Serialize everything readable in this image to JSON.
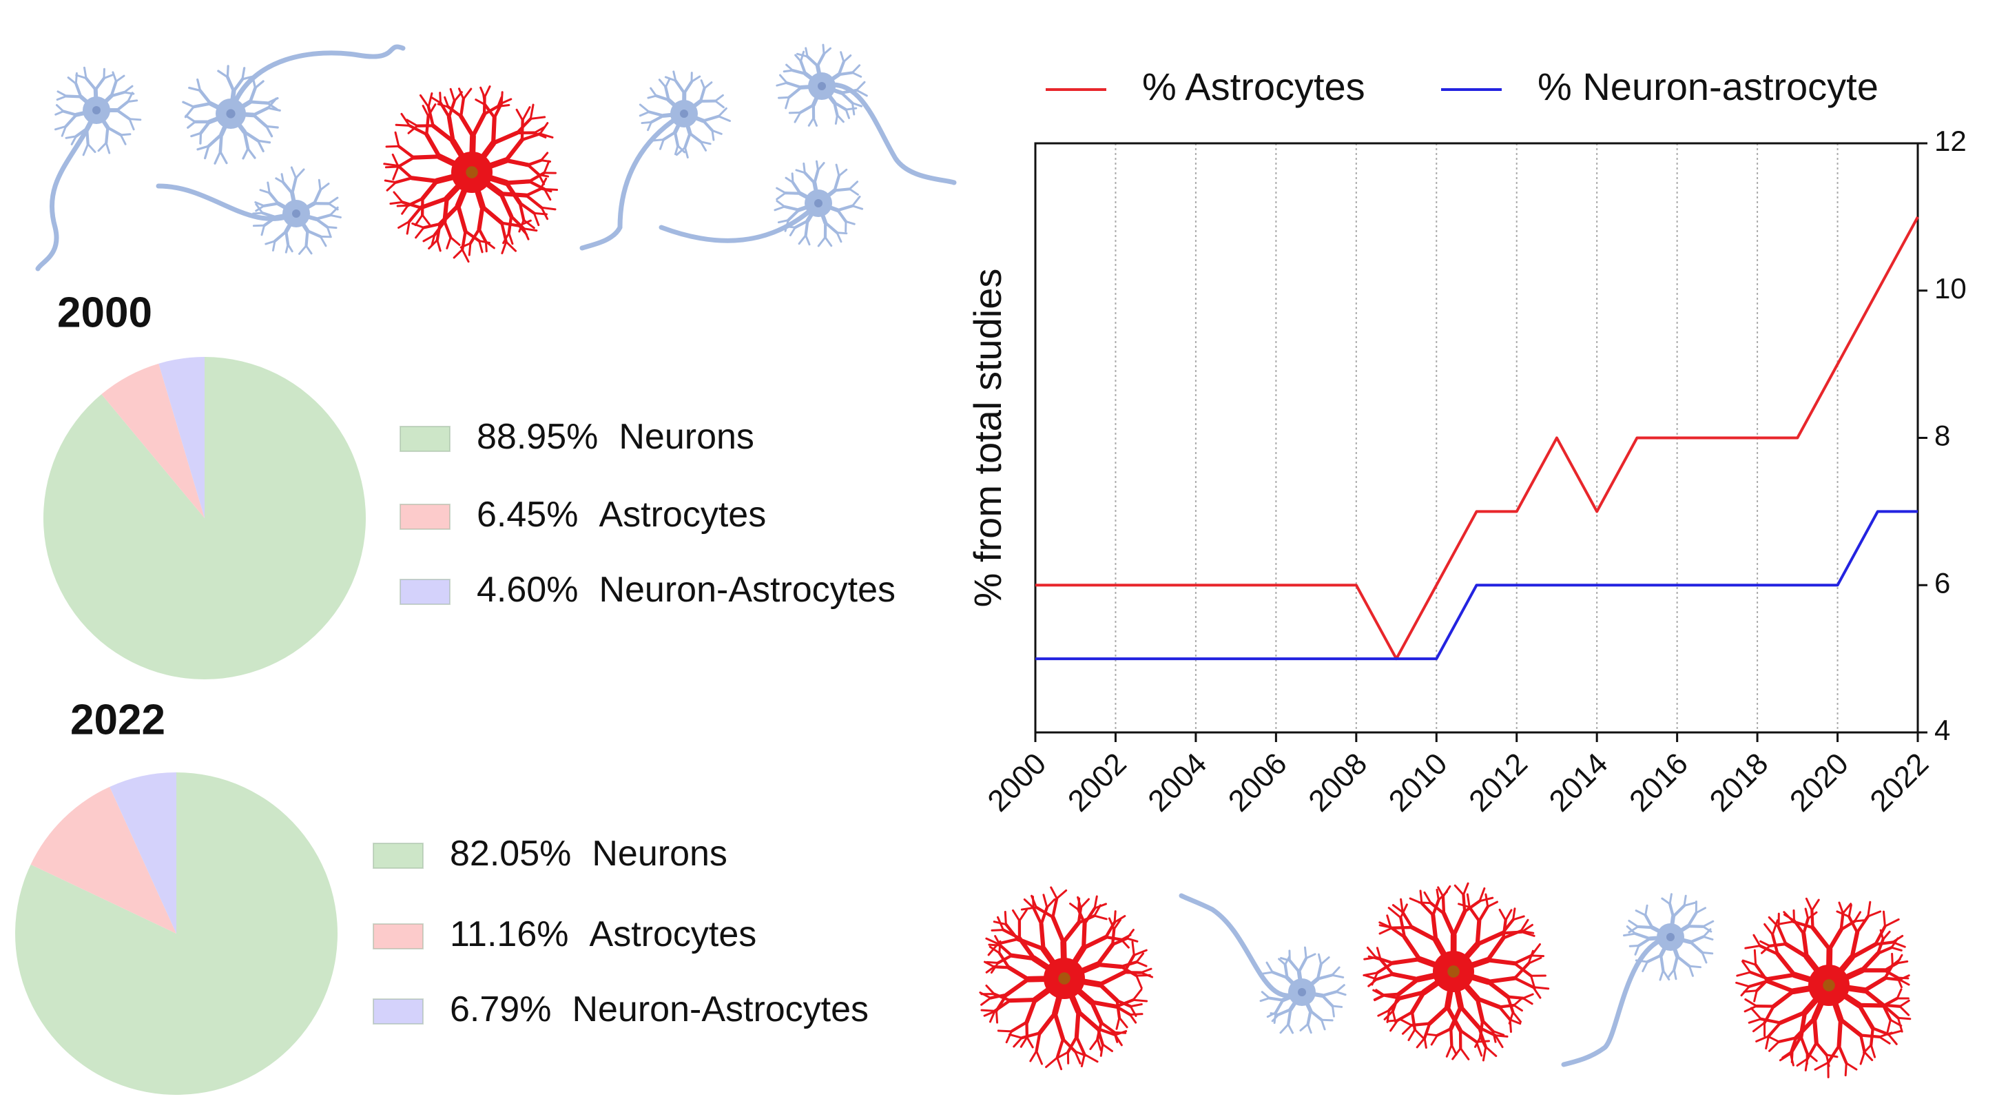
{
  "chart_data": [
    {
      "type": "pie",
      "title": "2000",
      "categories": [
        "Neurons",
        "Astrocytes",
        "Neuron-Astrocytes"
      ],
      "values": [
        88.95,
        6.45,
        4.6
      ],
      "value_labels": [
        "88.95%",
        "6.45%",
        "4.60%"
      ],
      "colors": [
        "#cde6c8",
        "#fccbcb",
        "#d4d2fb"
      ]
    },
    {
      "type": "pie",
      "title": "2022",
      "categories": [
        "Neurons",
        "Astrocytes",
        "Neuron-Astrocytes"
      ],
      "values": [
        82.05,
        11.16,
        6.79
      ],
      "value_labels": [
        "82.05%",
        "11.16%",
        "6.79%"
      ],
      "colors": [
        "#cde6c8",
        "#fccbcb",
        "#d4d2fb"
      ]
    },
    {
      "type": "line",
      "y_label": "% from total studies",
      "x": [
        2000,
        2001,
        2002,
        2003,
        2004,
        2005,
        2006,
        2007,
        2008,
        2009,
        2010,
        2011,
        2012,
        2013,
        2014,
        2015,
        2016,
        2017,
        2018,
        2019,
        2020,
        2021,
        2022
      ],
      "series": [
        {
          "name": "% Astrocytes",
          "color": "#e8262b",
          "values": [
            6,
            6,
            6,
            6,
            6,
            6,
            6,
            6,
            6,
            5,
            6,
            7,
            7,
            8,
            7,
            8,
            8,
            8,
            8,
            8,
            9,
            10,
            11
          ]
        },
        {
          "name": "% Neuron-astrocyte",
          "color": "#2323e0",
          "values": [
            5,
            5,
            5,
            5,
            5,
            5,
            5,
            5,
            5,
            5,
            5,
            6,
            6,
            6,
            6,
            6,
            6,
            6,
            6,
            6,
            6,
            7,
            7
          ]
        }
      ],
      "xlim": [
        2000,
        2022
      ],
      "xticks": [
        2000,
        2002,
        2004,
        2006,
        2008,
        2010,
        2012,
        2014,
        2016,
        2018,
        2020,
        2022
      ],
      "ylim": [
        4,
        12
      ],
      "yticks": [
        4,
        6,
        8,
        10,
        12
      ],
      "grid": true,
      "y_axis_side": "right",
      "legend_position": "top"
    }
  ]
}
